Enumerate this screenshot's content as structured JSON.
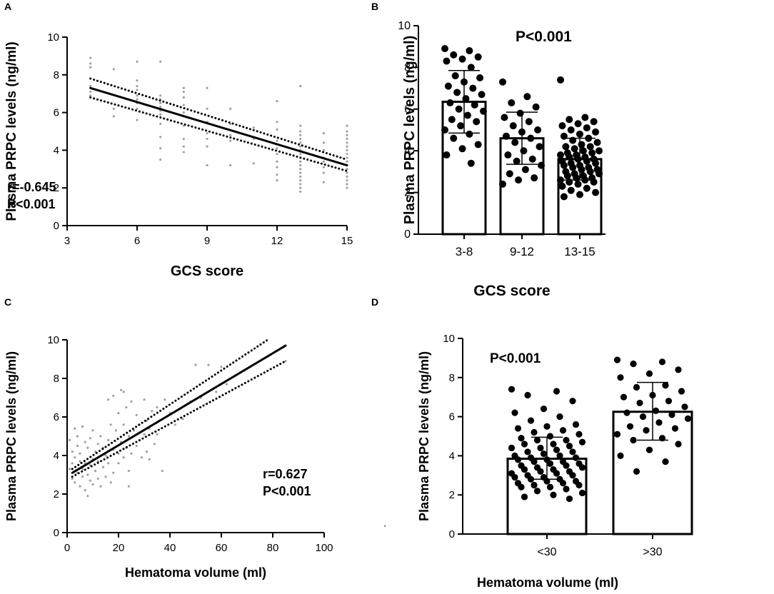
{
  "figure": {
    "stray_mark": "'"
  },
  "chart_data": [
    {
      "panel": "A",
      "type": "scatter",
      "xlabel": "GCS score",
      "ylabel": "Plasma PRPC levels (ng/ml)",
      "xlim": [
        3,
        15
      ],
      "ylim": [
        0,
        10
      ],
      "x_ticks": [
        3,
        6,
        9,
        12,
        15
      ],
      "y_ticks": [
        0,
        2,
        4,
        6,
        8,
        10
      ],
      "point_color": "#a0a0a0",
      "fit_line": {
        "x": [
          4,
          15
        ],
        "y": [
          7.3,
          3.2
        ]
      },
      "ci_upper": {
        "x": [
          4,
          15
        ],
        "y": [
          7.8,
          3.5
        ]
      },
      "ci_lower": {
        "x": [
          4,
          15
        ],
        "y": [
          6.8,
          2.9
        ]
      },
      "points": [
        [
          4,
          8.9
        ],
        [
          4,
          8.6
        ],
        [
          4,
          8.4
        ],
        [
          4,
          7.4
        ],
        [
          4,
          7.1
        ],
        [
          4,
          6.9
        ],
        [
          5,
          8.3
        ],
        [
          5,
          6.2
        ],
        [
          5,
          5.8
        ],
        [
          6,
          8.7
        ],
        [
          6,
          7.7
        ],
        [
          6,
          7.4
        ],
        [
          6,
          7.2
        ],
        [
          6,
          6.9
        ],
        [
          6,
          6.7
        ],
        [
          6,
          6.5
        ],
        [
          6,
          6.2
        ],
        [
          6,
          5.6
        ],
        [
          7,
          8.7
        ],
        [
          7,
          6.9
        ],
        [
          7,
          6.7
        ],
        [
          7,
          6.5
        ],
        [
          7,
          6.3
        ],
        [
          7,
          6.1
        ],
        [
          7,
          5.9
        ],
        [
          7,
          5.4
        ],
        [
          7,
          4.7
        ],
        [
          7,
          4.1
        ],
        [
          7,
          3.5
        ],
        [
          8,
          7.3
        ],
        [
          8,
          7.1
        ],
        [
          8,
          6.8
        ],
        [
          8,
          6.4
        ],
        [
          8,
          6.0
        ],
        [
          8,
          5.3
        ],
        [
          8,
          4.6
        ],
        [
          8,
          4.2
        ],
        [
          8,
          3.9
        ],
        [
          9,
          7.3
        ],
        [
          9,
          6.2
        ],
        [
          9,
          5.5
        ],
        [
          9,
          4.9
        ],
        [
          9,
          4.6
        ],
        [
          9,
          4.2
        ],
        [
          9,
          3.2
        ],
        [
          10,
          6.2
        ],
        [
          10,
          5.4
        ],
        [
          10,
          4.8
        ],
        [
          10,
          4.5
        ],
        [
          10,
          3.2
        ],
        [
          11,
          5.2
        ],
        [
          11,
          4.6
        ],
        [
          11,
          3.3
        ],
        [
          12,
          6.6
        ],
        [
          12,
          5.5
        ],
        [
          12,
          5.1
        ],
        [
          12,
          4.5
        ],
        [
          12,
          4.1
        ],
        [
          12,
          3.8
        ],
        [
          12,
          3.4
        ],
        [
          12,
          3.1
        ],
        [
          12,
          2.7
        ],
        [
          12,
          2.4
        ],
        [
          13,
          7.4
        ],
        [
          13,
          5.3
        ],
        [
          13,
          5.0
        ],
        [
          13,
          4.8
        ],
        [
          13,
          4.6
        ],
        [
          13,
          4.4
        ],
        [
          13,
          4.2
        ],
        [
          13,
          4.0
        ],
        [
          13,
          3.8
        ],
        [
          13,
          3.6
        ],
        [
          13,
          3.4
        ],
        [
          13,
          3.2
        ],
        [
          13,
          3.0
        ],
        [
          13,
          2.8
        ],
        [
          13,
          2.6
        ],
        [
          13,
          2.4
        ],
        [
          13,
          2.2
        ],
        [
          13,
          2.0
        ],
        [
          13,
          1.8
        ],
        [
          14,
          4.9
        ],
        [
          14,
          4.4
        ],
        [
          14,
          4.0
        ],
        [
          14,
          3.6
        ],
        [
          14,
          3.4
        ],
        [
          14,
          3.1
        ],
        [
          14,
          2.8
        ],
        [
          14,
          2.3
        ],
        [
          15,
          5.3
        ],
        [
          15,
          5.0
        ],
        [
          15,
          4.8
        ],
        [
          15,
          4.6
        ],
        [
          15,
          4.4
        ],
        [
          15,
          4.2
        ],
        [
          15,
          4.0
        ],
        [
          15,
          3.8
        ],
        [
          15,
          3.6
        ],
        [
          15,
          3.4
        ],
        [
          15,
          3.2
        ],
        [
          15,
          3.0
        ],
        [
          15,
          2.8
        ],
        [
          15,
          2.6
        ],
        [
          15,
          2.4
        ],
        [
          15,
          2.2
        ],
        [
          15,
          2.0
        ]
      ],
      "annotations": [
        "r=-0.645",
        "P<0.001"
      ]
    },
    {
      "panel": "B",
      "type": "bar",
      "xlabel": "GCS score",
      "ylabel": "Plasma PRPC levels (ng/ml)",
      "ylim": [
        0,
        10
      ],
      "y_ticks": [
        0,
        2,
        4,
        6,
        8,
        10
      ],
      "annotation": "P<0.001",
      "categories": [
        "3-8",
        "9-12",
        "13-15"
      ],
      "values": [
        6.35,
        4.6,
        3.6
      ],
      "errors": [
        {
          "upper": 7.85,
          "lower": 4.85
        },
        {
          "upper": 5.85,
          "lower": 3.35
        },
        {
          "upper": 4.6,
          "lower": 2.6
        }
      ],
      "points": [
        [
          8.9,
          8.8,
          8.6,
          8.5,
          8.4,
          8.3,
          8.0,
          7.6,
          7.5,
          7.3,
          7.1,
          7.0,
          6.8,
          6.7,
          6.5,
          6.3,
          6.2,
          6.0,
          5.9,
          5.7,
          5.5,
          5.4,
          5.2,
          5.0,
          4.8,
          4.6,
          4.3,
          4.1,
          3.8,
          3.4
        ],
        [
          7.3,
          6.6,
          6.3,
          6.1,
          5.8,
          5.6,
          5.4,
          5.2,
          5.0,
          4.9,
          4.7,
          4.6,
          4.4,
          4.2,
          4.0,
          3.8,
          3.6,
          3.5,
          3.3,
          3.1,
          2.9,
          2.7,
          2.6,
          2.4
        ],
        [
          7.4,
          5.6,
          5.5,
          5.4,
          5.3,
          5.2,
          5.1,
          5.0,
          4.9,
          4.8,
          4.7,
          4.6,
          4.5,
          4.4,
          4.3,
          4.2,
          4.2,
          4.1,
          4.0,
          4.0,
          3.9,
          3.9,
          3.8,
          3.8,
          3.7,
          3.7,
          3.6,
          3.6,
          3.5,
          3.5,
          3.4,
          3.4,
          3.3,
          3.3,
          3.2,
          3.2,
          3.1,
          3.1,
          3.0,
          3.0,
          2.9,
          2.9,
          2.8,
          2.8,
          2.7,
          2.7,
          2.6,
          2.6,
          2.5,
          2.5,
          2.4,
          2.3,
          2.2,
          2.1,
          2.0,
          1.9,
          1.8
        ]
      ]
    },
    {
      "panel": "C",
      "type": "scatter",
      "xlabel": "Hematoma volume (ml)",
      "ylabel": "Plasma PRPC levels (ng/ml)",
      "xlim": [
        0,
        100
      ],
      "ylim": [
        0,
        10
      ],
      "x_ticks": [
        0,
        20,
        40,
        60,
        80,
        100
      ],
      "y_ticks": [
        0,
        2,
        4,
        6,
        8,
        10
      ],
      "point_color": "#a0a0a0",
      "fit_line": {
        "x": [
          2,
          85
        ],
        "y": [
          3.1,
          9.7
        ]
      },
      "ci_upper": {
        "x": [
          2,
          78
        ],
        "y": [
          3.3,
          10.0
        ]
      },
      "ci_lower": {
        "x": [
          2,
          85
        ],
        "y": [
          2.9,
          8.9
        ]
      },
      "points": [
        [
          1,
          4.8
        ],
        [
          1,
          3.3
        ],
        [
          2,
          4.2
        ],
        [
          2,
          2.8
        ],
        [
          2,
          3.6
        ],
        [
          3,
          5.4
        ],
        [
          3,
          3.9
        ],
        [
          3,
          2.6
        ],
        [
          4,
          4.5
        ],
        [
          4,
          3.1
        ],
        [
          4,
          5.0
        ],
        [
          5,
          2.4
        ],
        [
          5,
          3.7
        ],
        [
          5,
          4.1
        ],
        [
          6,
          5.5
        ],
        [
          6,
          2.9
        ],
        [
          6,
          3.3
        ],
        [
          7,
          4.7
        ],
        [
          7,
          2.2
        ],
        [
          7,
          3.6
        ],
        [
          8,
          3.0
        ],
        [
          8,
          4.4
        ],
        [
          8,
          1.9
        ],
        [
          9,
          3.5
        ],
        [
          9,
          4.9
        ],
        [
          9,
          2.7
        ],
        [
          10,
          5.3
        ],
        [
          10,
          3.8
        ],
        [
          10,
          2.5
        ],
        [
          11,
          4.2
        ],
        [
          11,
          3.2
        ],
        [
          12,
          2.8
        ],
        [
          12,
          4.6
        ],
        [
          12,
          3.7
        ],
        [
          13,
          5.0
        ],
        [
          13,
          2.4
        ],
        [
          14,
          4.4
        ],
        [
          14,
          3.4
        ],
        [
          15,
          2.9
        ],
        [
          15,
          4.0
        ],
        [
          16,
          6.9
        ],
        [
          16,
          4.8
        ],
        [
          16,
          3.6
        ],
        [
          17,
          5.6
        ],
        [
          17,
          2.6
        ],
        [
          18,
          7.1
        ],
        [
          18,
          4.3
        ],
        [
          18,
          3.1
        ],
        [
          19,
          5.3
        ],
        [
          20,
          4.1
        ],
        [
          20,
          3.6
        ],
        [
          20,
          6.2
        ],
        [
          21,
          7.4
        ],
        [
          21,
          4.7
        ],
        [
          22,
          7.3
        ],
        [
          22,
          3.9
        ],
        [
          22,
          5.6
        ],
        [
          23,
          4.4
        ],
        [
          23,
          6.5
        ],
        [
          24,
          3.2
        ],
        [
          24,
          2.4
        ],
        [
          24,
          5.0
        ],
        [
          25,
          4.1
        ],
        [
          25,
          6.8
        ],
        [
          26,
          5.3
        ],
        [
          27,
          6.1
        ],
        [
          27,
          4.5
        ],
        [
          28,
          5.6
        ],
        [
          29,
          3.9
        ],
        [
          30,
          6.9
        ],
        [
          30,
          5.1
        ],
        [
          31,
          5.8
        ],
        [
          31,
          4.2
        ],
        [
          32,
          5.4
        ],
        [
          32,
          3.8
        ],
        [
          33,
          6.3
        ],
        [
          34,
          4.6
        ],
        [
          35,
          6.5
        ],
        [
          35,
          5.1
        ],
        [
          37,
          3.2
        ],
        [
          38,
          6.9
        ],
        [
          40,
          6.2
        ],
        [
          42,
          5.6
        ],
        [
          45,
          5.9
        ],
        [
          48,
          6.8
        ],
        [
          50,
          8.7
        ],
        [
          52,
          7.0
        ],
        [
          55,
          8.7
        ],
        [
          58,
          7.3
        ],
        [
          60,
          8.6
        ],
        [
          62,
          7.7
        ],
        [
          85,
          8.9
        ]
      ],
      "annotations": [
        "r=0.627",
        "P<0.001"
      ]
    },
    {
      "panel": "D",
      "type": "bar",
      "xlabel": "Hematoma volume (ml)",
      "ylabel": "Plasma PRPC levels (ng/ml)",
      "ylim": [
        0,
        10
      ],
      "y_ticks": [
        0,
        2,
        4,
        6,
        8,
        10
      ],
      "annotation": "P<0.001",
      "categories": [
        "<30",
        ">30"
      ],
      "values": [
        3.85,
        6.25
      ],
      "errors": [
        {
          "upper": 4.95,
          "lower": 2.8
        },
        {
          "upper": 7.75,
          "lower": 4.8
        }
      ],
      "points": [
        [
          7.4,
          7.3,
          7.1,
          6.8,
          6.4,
          6.2,
          6.0,
          5.8,
          5.6,
          5.5,
          5.4,
          5.3,
          5.2,
          5.1,
          5.0,
          4.9,
          4.8,
          4.8,
          4.7,
          4.6,
          4.6,
          4.5,
          4.4,
          4.4,
          4.3,
          4.2,
          4.2,
          4.1,
          4.0,
          4.0,
          3.9,
          3.9,
          3.8,
          3.8,
          3.7,
          3.7,
          3.6,
          3.6,
          3.5,
          3.5,
          3.4,
          3.4,
          3.3,
          3.3,
          3.2,
          3.2,
          3.1,
          3.1,
          3.0,
          3.0,
          2.9,
          2.9,
          2.8,
          2.8,
          2.7,
          2.7,
          2.6,
          2.6,
          2.5,
          2.5,
          2.4,
          2.4,
          2.3,
          2.2,
          2.1,
          2.0,
          1.9,
          1.8
        ],
        [
          8.9,
          8.8,
          8.7,
          8.4,
          8.2,
          8.0,
          7.6,
          7.5,
          7.3,
          7.1,
          7.0,
          6.8,
          6.7,
          6.5,
          6.3,
          6.2,
          6.1,
          6.0,
          5.9,
          5.7,
          5.5,
          5.4,
          5.3,
          5.1,
          4.9,
          4.8,
          4.6,
          4.3,
          4.0,
          3.7,
          3.2
        ]
      ]
    }
  ]
}
